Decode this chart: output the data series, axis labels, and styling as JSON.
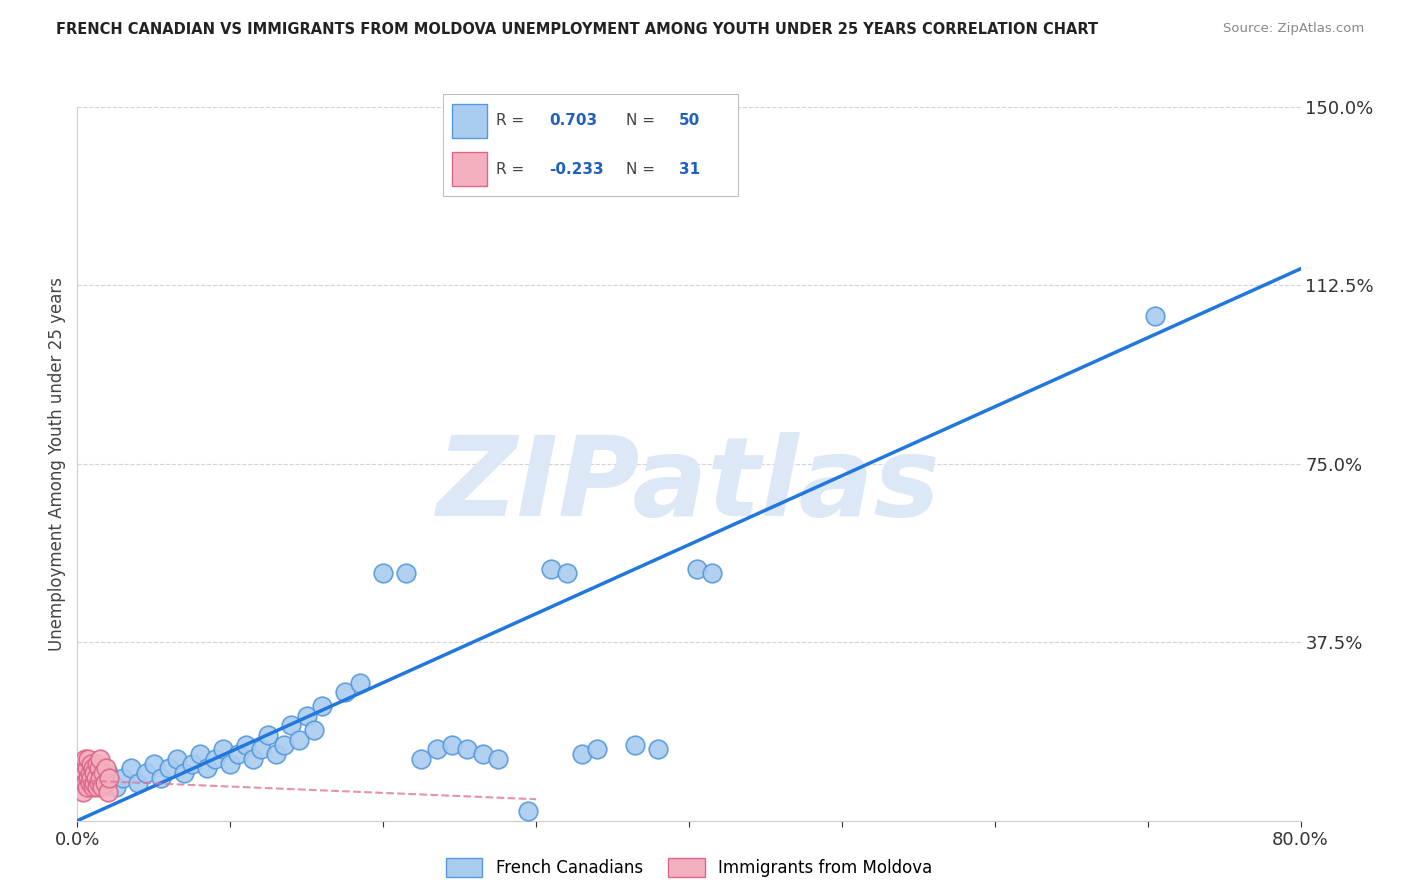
{
  "title": "FRENCH CANADIAN VS IMMIGRANTS FROM MOLDOVA UNEMPLOYMENT AMONG YOUTH UNDER 25 YEARS CORRELATION CHART",
  "source": "Source: ZipAtlas.com",
  "ylabel": "Unemployment Among Youth under 25 years",
  "xlim": [
    0.0,
    0.8
  ],
  "ylim": [
    0.0,
    1.5
  ],
  "xticks": [
    0.0,
    0.1,
    0.2,
    0.3,
    0.4,
    0.5,
    0.6,
    0.7,
    0.8
  ],
  "xticklabels": [
    "0.0%",
    "",
    "",
    "",
    "",
    "",
    "",
    "",
    "80.0%"
  ],
  "yticks": [
    0.0,
    0.375,
    0.75,
    1.125,
    1.5
  ],
  "yticklabels": [
    "",
    "37.5%",
    "75.0%",
    "112.5%",
    "150.0%"
  ],
  "grid_color": "#c8c8c8",
  "background_color": "#ffffff",
  "blue_color": "#aaccf0",
  "blue_edge_color": "#5599dd",
  "blue_line_color": "#2277dd",
  "pink_color": "#f5b0c0",
  "pink_edge_color": "#dd6688",
  "pink_line_color": "#dd7799",
  "watermark": "ZIPatlas",
  "watermark_color": "#dce8f5",
  "legend_label_blue": "French Canadians",
  "legend_label_pink": "Immigrants from Moldova",
  "blue_R": "0.703",
  "blue_N": "50",
  "pink_R": "-0.233",
  "pink_N": "31",
  "blue_line_x": [
    0.0,
    0.8
  ],
  "blue_line_y": [
    0.0,
    1.16
  ],
  "pink_line_x": [
    0.0,
    0.3
  ],
  "pink_line_y": [
    0.085,
    0.045
  ],
  "blue_scatter": [
    [
      0.015,
      0.08
    ],
    [
      0.02,
      0.1
    ],
    [
      0.025,
      0.07
    ],
    [
      0.03,
      0.09
    ],
    [
      0.035,
      0.11
    ],
    [
      0.04,
      0.08
    ],
    [
      0.045,
      0.1
    ],
    [
      0.05,
      0.12
    ],
    [
      0.055,
      0.09
    ],
    [
      0.06,
      0.11
    ],
    [
      0.065,
      0.13
    ],
    [
      0.07,
      0.1
    ],
    [
      0.075,
      0.12
    ],
    [
      0.08,
      0.14
    ],
    [
      0.085,
      0.11
    ],
    [
      0.09,
      0.13
    ],
    [
      0.095,
      0.15
    ],
    [
      0.1,
      0.12
    ],
    [
      0.105,
      0.14
    ],
    [
      0.11,
      0.16
    ],
    [
      0.115,
      0.13
    ],
    [
      0.12,
      0.15
    ],
    [
      0.125,
      0.18
    ],
    [
      0.13,
      0.14
    ],
    [
      0.135,
      0.16
    ],
    [
      0.14,
      0.2
    ],
    [
      0.145,
      0.17
    ],
    [
      0.15,
      0.22
    ],
    [
      0.155,
      0.19
    ],
    [
      0.16,
      0.24
    ],
    [
      0.175,
      0.27
    ],
    [
      0.185,
      0.29
    ],
    [
      0.2,
      0.52
    ],
    [
      0.215,
      0.52
    ],
    [
      0.225,
      0.13
    ],
    [
      0.235,
      0.15
    ],
    [
      0.245,
      0.16
    ],
    [
      0.255,
      0.15
    ],
    [
      0.265,
      0.14
    ],
    [
      0.275,
      0.13
    ],
    [
      0.295,
      0.02
    ],
    [
      0.31,
      0.53
    ],
    [
      0.32,
      0.52
    ],
    [
      0.33,
      0.14
    ],
    [
      0.34,
      0.15
    ],
    [
      0.365,
      0.16
    ],
    [
      0.38,
      0.15
    ],
    [
      0.405,
      0.53
    ],
    [
      0.415,
      0.52
    ],
    [
      0.705,
      1.06
    ]
  ],
  "pink_scatter": [
    [
      0.003,
      0.09
    ],
    [
      0.004,
      0.12
    ],
    [
      0.004,
      0.06
    ],
    [
      0.005,
      0.1
    ],
    [
      0.005,
      0.08
    ],
    [
      0.005,
      0.13
    ],
    [
      0.006,
      0.07
    ],
    [
      0.006,
      0.11
    ],
    [
      0.007,
      0.09
    ],
    [
      0.007,
      0.13
    ],
    [
      0.008,
      0.08
    ],
    [
      0.008,
      0.1
    ],
    [
      0.009,
      0.09
    ],
    [
      0.009,
      0.12
    ],
    [
      0.01,
      0.07
    ],
    [
      0.01,
      0.11
    ],
    [
      0.011,
      0.08
    ],
    [
      0.011,
      0.1
    ],
    [
      0.012,
      0.09
    ],
    [
      0.013,
      0.12
    ],
    [
      0.013,
      0.07
    ],
    [
      0.014,
      0.11
    ],
    [
      0.014,
      0.08
    ],
    [
      0.015,
      0.09
    ],
    [
      0.015,
      0.13
    ],
    [
      0.016,
      0.07
    ],
    [
      0.017,
      0.1
    ],
    [
      0.018,
      0.08
    ],
    [
      0.019,
      0.11
    ],
    [
      0.02,
      0.06
    ],
    [
      0.021,
      0.09
    ]
  ]
}
